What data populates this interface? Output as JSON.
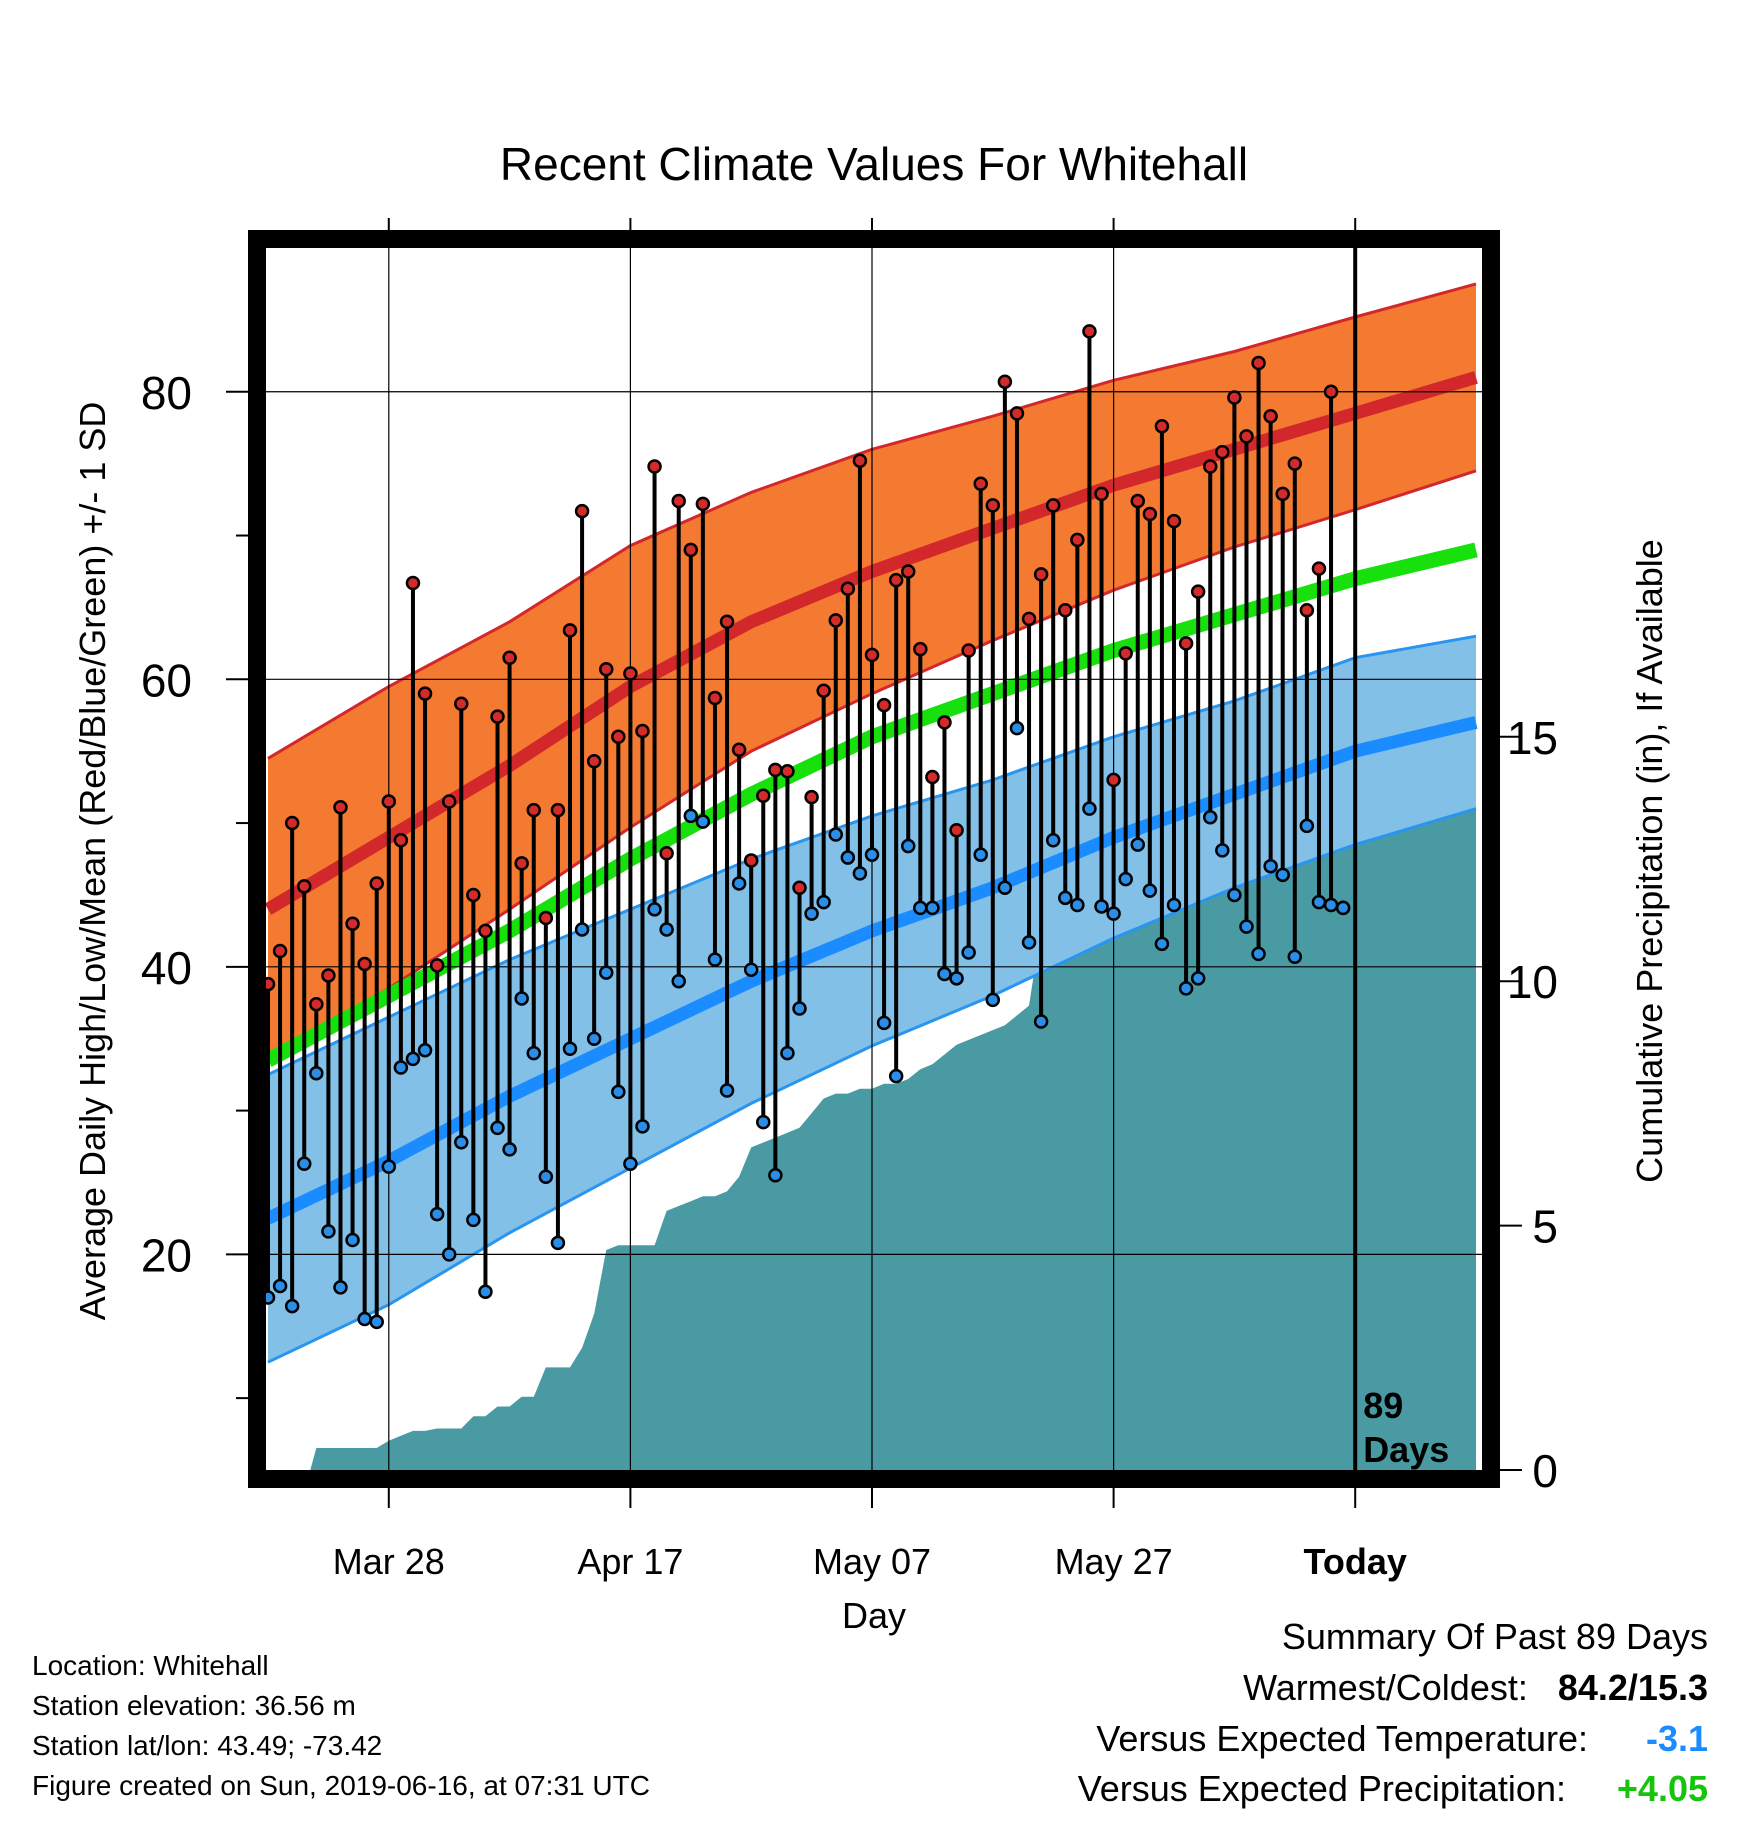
{
  "chart_data": {
    "type": "line",
    "title": "Recent Climate Values For Whitehall",
    "xlabel": "Day",
    "ylabel": "Average Daily High/Low/Mean (Red/Blue/Green) +/- 1 SD",
    "y2label": "Cumulative Precipitation (in), If Available",
    "xlim": [
      0,
      100
    ],
    "ylim": [
      5,
      90
    ],
    "y2lim": [
      0,
      25
    ],
    "x_ticks": [
      {
        "x": 10,
        "label": "Mar 28"
      },
      {
        "x": 30,
        "label": "Apr 17"
      },
      {
        "x": 50,
        "label": "May 07"
      },
      {
        "x": 70,
        "label": "May 27"
      },
      {
        "x": 90,
        "label": "Today"
      }
    ],
    "y_ticks": [
      20,
      40,
      60,
      80
    ],
    "y2_ticks": [
      0,
      5,
      10,
      15
    ],
    "grid": true,
    "today_marker": {
      "x": 90,
      "label_line1": "89",
      "label_line2": "Days"
    },
    "normal_high": {
      "x": [
        0,
        10,
        20,
        30,
        40,
        50,
        60,
        70,
        80,
        90,
        100
      ],
      "mean": [
        44.0,
        49.0,
        54.0,
        59.5,
        64.0,
        67.5,
        70.5,
        73.5,
        76.0,
        78.5,
        81.0
      ],
      "sd": [
        10.5,
        10.5,
        10.0,
        9.8,
        9.0,
        8.5,
        7.8,
        7.3,
        6.8,
        6.7,
        6.5
      ]
    },
    "normal_mean": {
      "x": [
        0,
        10,
        20,
        30,
        40,
        50,
        60,
        70,
        80,
        90,
        100
      ],
      "values": [
        33.5,
        38.0,
        42.5,
        47.5,
        52.0,
        56.0,
        59.0,
        62.0,
        64.5,
        67.0,
        69.0
      ]
    },
    "normal_low": {
      "x": [
        0,
        10,
        20,
        30,
        40,
        50,
        60,
        70,
        80,
        90,
        100
      ],
      "mean": [
        22.5,
        26.5,
        31.0,
        35.0,
        39.0,
        42.5,
        45.5,
        49.0,
        52.0,
        55.0,
        57.0
      ],
      "sd": [
        10.0,
        10.0,
        9.5,
        9.0,
        8.5,
        8.0,
        7.5,
        7.0,
        6.5,
        6.5,
        6.0
      ]
    },
    "daily": {
      "x": [
        0,
        1,
        2,
        3,
        4,
        5,
        6,
        7,
        8,
        9,
        10,
        11,
        12,
        13,
        14,
        15,
        16,
        17,
        18,
        19,
        20,
        21,
        22,
        23,
        24,
        25,
        26,
        27,
        28,
        29,
        30,
        31,
        32,
        33,
        34,
        35,
        36,
        37,
        38,
        39,
        40,
        41,
        42,
        43,
        44,
        45,
        46,
        47,
        48,
        49,
        50,
        51,
        52,
        53,
        54,
        55,
        56,
        57,
        58,
        59,
        60,
        61,
        62,
        63,
        64,
        65,
        66,
        67,
        68,
        69,
        70,
        71,
        72,
        73,
        74,
        75,
        76,
        77,
        78,
        79,
        80,
        81,
        82,
        83,
        84,
        85,
        86,
        87,
        88,
        89
      ],
      "high": [
        38.8,
        41.1,
        50.0,
        45.6,
        37.4,
        39.4,
        51.1,
        43.0,
        40.2,
        45.8,
        51.5,
        48.8,
        66.7,
        59.0,
        40.1,
        51.5,
        58.3,
        45.0,
        42.5,
        57.4,
        61.5,
        47.2,
        50.9,
        43.4,
        50.9,
        63.4,
        71.7,
        54.3,
        60.7,
        56.0,
        60.4,
        56.4,
        74.8,
        47.9,
        72.4,
        69.0,
        72.2,
        58.7,
        64.0,
        55.1,
        47.4,
        51.9,
        53.7,
        53.6,
        45.5,
        51.8,
        59.2,
        64.1,
        66.3,
        75.2,
        61.7,
        58.2,
        66.9,
        67.5,
        62.1,
        53.2,
        57.0,
        49.5,
        62.0,
        73.6,
        72.1,
        80.7,
        78.5,
        64.2,
        67.3,
        72.1,
        64.8,
        69.7,
        84.2,
        72.9,
        53.0,
        61.8,
        72.4,
        71.5,
        77.6,
        71.0,
        62.5,
        66.1,
        74.8,
        75.8,
        79.6,
        76.9,
        82.0,
        78.3,
        72.9,
        75.0,
        64.8,
        67.7,
        80.0,
        44.1
      ],
      "low": [
        17.0,
        17.8,
        16.4,
        26.3,
        32.6,
        21.6,
        17.7,
        21.0,
        15.5,
        15.3,
        26.1,
        33.0,
        33.6,
        34.2,
        22.8,
        20.0,
        27.8,
        22.4,
        17.4,
        28.8,
        27.3,
        37.8,
        34.0,
        25.4,
        20.8,
        34.3,
        42.6,
        35.0,
        39.6,
        31.3,
        26.3,
        28.9,
        44.0,
        42.6,
        39.0,
        50.5,
        50.1,
        40.5,
        31.4,
        45.8,
        39.8,
        29.2,
        25.5,
        34.0,
        37.1,
        43.7,
        44.5,
        49.2,
        47.6,
        46.5,
        47.8,
        36.1,
        32.4,
        48.4,
        44.1,
        44.1,
        39.5,
        39.2,
        41.0,
        47.8,
        37.7,
        45.5,
        56.6,
        41.7,
        36.2,
        48.8,
        44.8,
        44.3,
        51.0,
        44.2,
        43.7,
        46.1,
        48.5,
        45.3,
        41.6,
        44.3,
        38.5,
        39.2,
        50.4,
        48.1,
        45.0,
        42.8,
        40.9,
        47.0,
        46.4,
        40.7,
        49.8,
        44.5,
        44.3,
        44.1
      ]
    },
    "precip": {
      "x": [
        3.5,
        4,
        9,
        10,
        11,
        12,
        13,
        14,
        16,
        17,
        18,
        19,
        20,
        21,
        22,
        23,
        25,
        26,
        27,
        28,
        29,
        30,
        31,
        32,
        33,
        34,
        35,
        36,
        37,
        38,
        39,
        40,
        41,
        42,
        43,
        44,
        45,
        46,
        47,
        48,
        49,
        50,
        51,
        52,
        53,
        54,
        55,
        56,
        57,
        58,
        59,
        60,
        61,
        62,
        63,
        64,
        65,
        66,
        67,
        68,
        69,
        70,
        71,
        72,
        73,
        74,
        75,
        76,
        77,
        78,
        79,
        80,
        81,
        82,
        83,
        84,
        85,
        86,
        87,
        88,
        89,
        90,
        95,
        100
      ],
      "values": [
        0,
        0.45,
        0.45,
        0.6,
        0.7,
        0.8,
        0.8,
        0.85,
        0.85,
        1.1,
        1.1,
        1.3,
        1.3,
        1.5,
        1.5,
        2.1,
        2.1,
        2.5,
        3.2,
        4.5,
        4.6,
        4.6,
        4.6,
        4.6,
        5.3,
        5.4,
        5.5,
        5.6,
        5.6,
        5.7,
        6.0,
        6.6,
        6.7,
        6.8,
        6.9,
        7.0,
        7.3,
        7.6,
        7.7,
        7.7,
        7.8,
        7.8,
        7.9,
        7.9,
        8.0,
        8.2,
        8.3,
        8.5,
        8.7,
        8.8,
        8.9,
        9.0,
        9.1,
        9.3,
        9.5,
        11.1,
        11.6,
        11.8,
        11.9,
        12.0,
        12.1,
        12.1,
        13.5,
        13.6,
        13.6,
        13.6,
        13.6,
        13.6,
        13.7,
        13.7,
        13.8,
        13.8,
        14.0,
        14.0,
        14.1,
        14.1,
        14.2,
        14.3,
        14.4,
        14.5,
        14.5,
        14.6,
        14.6,
        14.6
      ]
    }
  },
  "colors": {
    "high_band": "#f47a32",
    "high_line": "#d3282b",
    "mean_line": "#17e00d",
    "low_band": "#82c0e8",
    "low_line": "#1a8cff",
    "low_edge": "#2a95f0",
    "precip_fill": "#4a9aa4",
    "high_dot": "#d32a2a",
    "low_dot": "#2a8ee8",
    "temp_departure": "#1a8cff",
    "precip_departure": "#17c40d"
  },
  "info": {
    "location": "Location: Whitehall",
    "elevation": "Station elevation: 36.56 m",
    "latlon": "Station lat/lon: 43.49; -73.42",
    "created": "Figure created on Sun, 2019-06-16, at 07:31 UTC"
  },
  "summary": {
    "heading": "Summary Of Past 89 Days",
    "warmest_label": "Warmest/Coldest:",
    "warmest_value": "84.2/15.3",
    "temp_label": "Versus Expected Temperature:",
    "temp_value": "-3.1",
    "precip_label": "Versus Expected Precipitation:",
    "precip_value": "+4.05"
  }
}
